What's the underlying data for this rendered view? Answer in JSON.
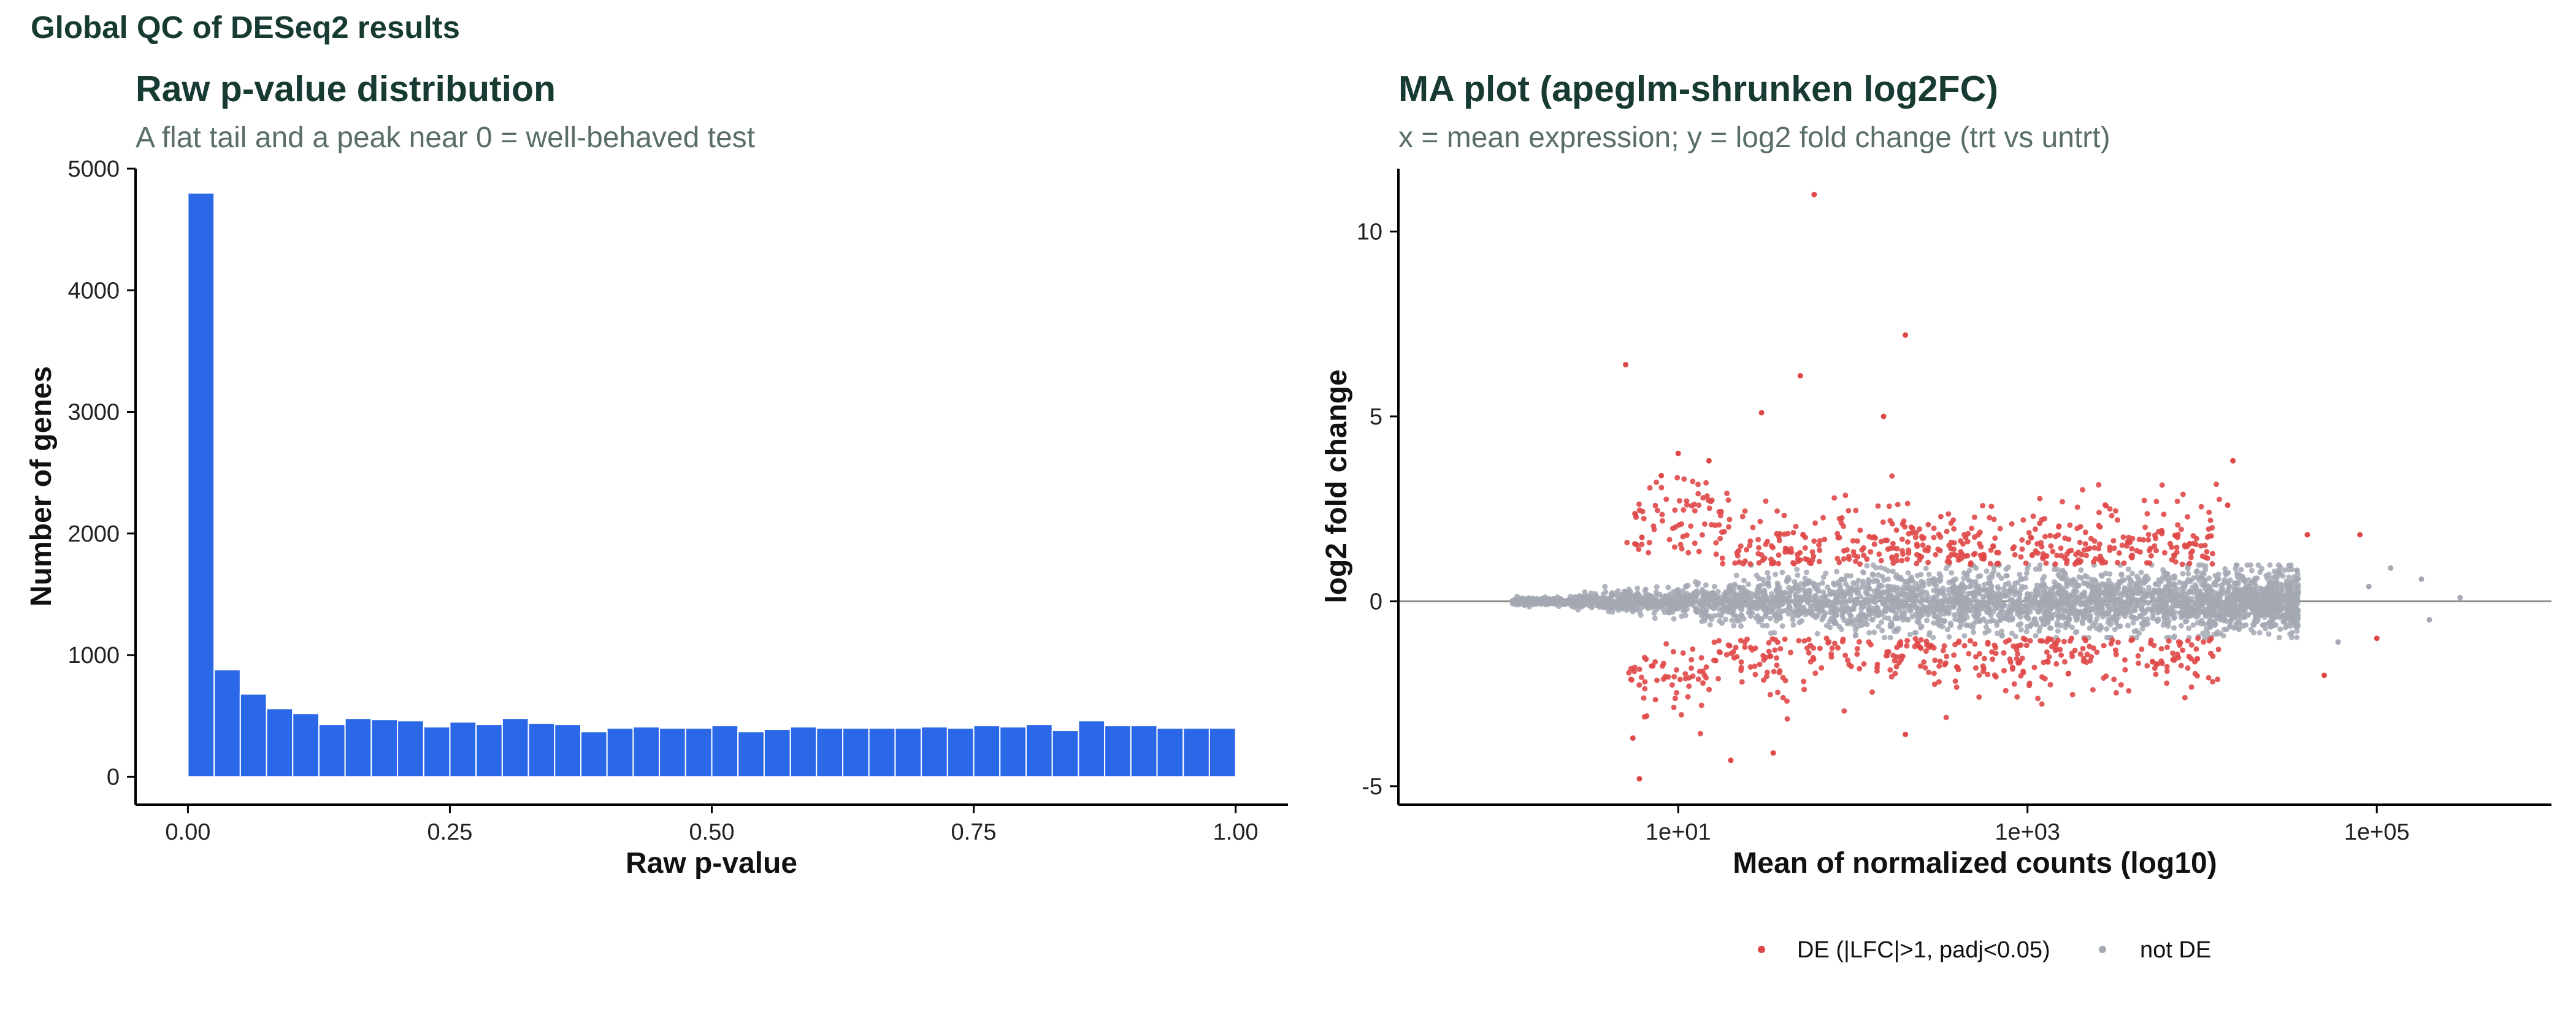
{
  "figure": {
    "title": "Global QC of DESeq2 results"
  },
  "chart_data": [
    {
      "type": "bar",
      "title": "Raw p-value distribution",
      "subtitle": "A flat tail and a peak near 0 = well-behaved test",
      "xlabel": "Raw p-value",
      "ylabel": "Number of genes",
      "xlim": [
        -0.05,
        1.05
      ],
      "ylim": [
        -230,
        5000
      ],
      "xticks": [
        0,
        0.25,
        0.5,
        0.75,
        1
      ],
      "xtick_labels": [
        "0.00",
        "0.25",
        "0.50",
        "0.75",
        "1.00"
      ],
      "yticks": [
        0,
        1000,
        2000,
        3000,
        4000,
        5000
      ],
      "ytick_labels": [
        "0",
        "1000",
        "2000",
        "3000",
        "4000",
        "5000"
      ],
      "bin_start": 0,
      "bin_width": 0.025,
      "values": [
        4800,
        880,
        680,
        560,
        520,
        430,
        480,
        470,
        460,
        410,
        450,
        430,
        480,
        440,
        430,
        370,
        400,
        410,
        400,
        400,
        420,
        370,
        390,
        410,
        400,
        400,
        400,
        400,
        410,
        400,
        420,
        410,
        430,
        380,
        460,
        420,
        420,
        400,
        400,
        400
      ],
      "color": "#2b68e8",
      "grid": false
    },
    {
      "type": "scatter",
      "title": "MA plot (apeglm-shrunken log2FC)",
      "subtitle": "x = mean expression; y = log2 fold change (trt vs untrt)",
      "xlabel": "Mean of normalized counts (log10)",
      "ylabel": "log2 fold change",
      "x_scale": "log10",
      "xlim": [
        0.25,
        1000000
      ],
      "ylim": [
        -5.5,
        11.7
      ],
      "xticks": [
        10,
        1000,
        100000
      ],
      "xtick_labels": [
        "1e+01",
        "1e+03",
        "1e+05"
      ],
      "yticks": [
        -5,
        0,
        5,
        10
      ],
      "ytick_labels": [
        "-5",
        "0",
        "5",
        "10"
      ],
      "hline": 0,
      "grid": false,
      "legend_position": "bottom",
      "series": [
        {
          "name": "DE (|LFC|>1, padj<0.05)",
          "color": "#e04848",
          "highlights": [
            [
              60,
              11.0
            ],
            [
              200,
              7.2
            ],
            [
              5,
              6.4
            ],
            [
              50,
              6.1
            ],
            [
              30,
              5.1
            ],
            [
              150,
              5.0
            ],
            [
              5.5,
              -3.7
            ],
            [
              6,
              -4.8
            ],
            [
              20,
              -4.3
            ],
            [
              35,
              -4.1
            ],
            [
              200,
              -3.6
            ],
            [
              15000,
              3.8
            ],
            [
              40000,
              1.8
            ],
            [
              80000,
              1.8
            ],
            [
              100000,
              -1.0
            ],
            [
              50000,
              -2.0
            ],
            [
              14000,
              2.6
            ],
            [
              10,
              4.0
            ],
            [
              15,
              3.8
            ],
            [
              8,
              3.4
            ]
          ]
        },
        {
          "name": "not DE",
          "color": "#a3a8b3",
          "highlights": [
            [
              180000,
              0.6
            ],
            [
              200000,
              -0.5
            ],
            [
              300000,
              0.1
            ],
            [
              120000,
              0.9
            ],
            [
              60000,
              -1.1
            ],
            [
              90000,
              0.4
            ]
          ]
        }
      ]
    }
  ]
}
